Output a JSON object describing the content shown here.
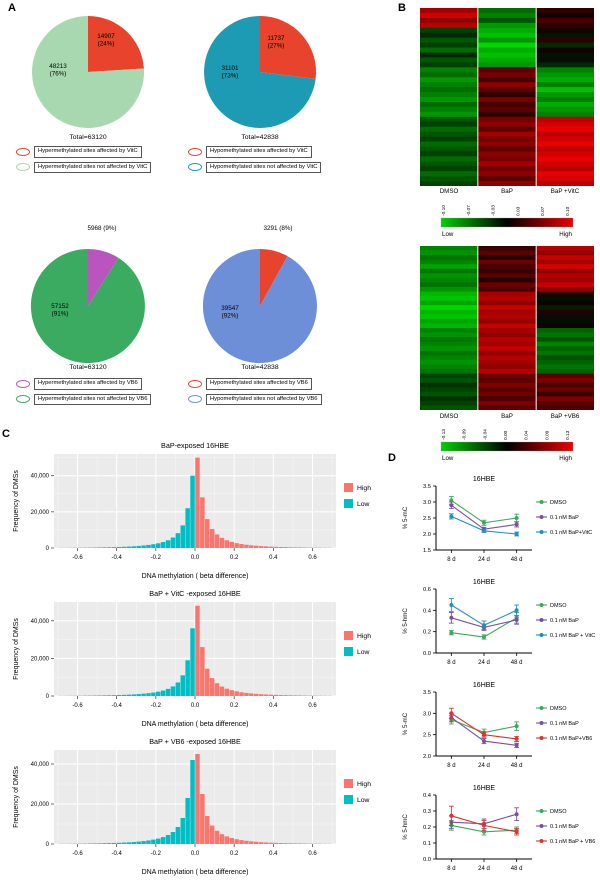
{
  "panel_labels": {
    "a": "A",
    "b": "B",
    "c": "C",
    "d": "D"
  },
  "colors": {
    "hist_high": "#F8766D",
    "hist_low": "#00BFC4",
    "axis": "#000000"
  },
  "pies": [
    {
      "total": "Total=63120",
      "slices": [
        {
          "pct": 24,
          "color": "#E8432D",
          "label_lines": [
            "14907",
            "(24%)"
          ],
          "label_offset": [
            18,
            -34
          ],
          "outside": false
        },
        {
          "pct": 76,
          "color": "#A8D8AF",
          "label_lines": [
            "48213",
            "(76%)"
          ],
          "label_offset": [
            -30,
            -4
          ],
          "outside": false
        }
      ],
      "legend": [
        {
          "color": "#E8432D",
          "text": "Hypermethylated sites affected by VitC"
        },
        {
          "color": "#A8D8AF",
          "text": "Hypermethylated sites not affected by VitC"
        }
      ]
    },
    {
      "total": "Total=42838",
      "slices": [
        {
          "pct": 27,
          "color": "#E8432D",
          "label_lines": [
            "11737",
            "(27%)"
          ],
          "label_offset": [
            16,
            -32
          ],
          "outside": false
        },
        {
          "pct": 73,
          "color": "#1E9BB4",
          "label_lines": [
            "31101",
            "(73%)"
          ],
          "label_offset": [
            -30,
            -2
          ],
          "outside": false
        }
      ],
      "legend": [
        {
          "color": "#E8432D",
          "text": "Hypomethylated sites affected by VitC"
        },
        {
          "color": "#1E9BB4",
          "text": "Hypomethylated sites not affected by VitC"
        }
      ]
    },
    {
      "total": "Total=63120",
      "slices": [
        {
          "pct": 9,
          "color": "#BA55C0",
          "label_lines": [
            "5968 (9%)"
          ],
          "label_offset": [
            14,
            10
          ],
          "outside": true
        },
        {
          "pct": 91,
          "color": "#3CAB62",
          "label_lines": [
            "57152",
            "(91%)"
          ],
          "label_offset": [
            -28,
            2
          ],
          "outside": false
        }
      ],
      "legend": [
        {
          "color": "#BA55C0",
          "text": "Hypermethylated sites affected by VB6"
        },
        {
          "color": "#3CAB62",
          "text": "Hypermethylated sites not affected by VB6"
        }
      ]
    },
    {
      "total": "Total=42838",
      "slices": [
        {
          "pct": 8,
          "color": "#E8432D",
          "label_lines": [
            "3291 (8%)"
          ],
          "label_offset": [
            18,
            10
          ],
          "outside": true
        },
        {
          "pct": 92,
          "color": "#6D8FD8",
          "label_lines": [
            "39547",
            "(92%)"
          ],
          "label_offset": [
            -30,
            4
          ],
          "outside": false
        }
      ],
      "legend": [
        {
          "color": "#E8432D",
          "text": "Hypomethylated sites affected by VB6"
        },
        {
          "color": "#6D8FD8",
          "text": "Hypomethylated sites not affected by VB6"
        }
      ]
    }
  ],
  "heatmaps": [
    {
      "columns": [
        "DMSO",
        "BaP",
        "BaP +VitC"
      ],
      "scale_ticks": [
        "-0.10",
        "-0.07",
        "-0.03",
        "0.03",
        "0.07",
        "0.10"
      ],
      "low_label": "Low",
      "high_label": "High",
      "max": 0.1,
      "rows": [
        [
          0.07,
          -0.05,
          0.02
        ],
        [
          0.09,
          -0.06,
          0.01
        ],
        [
          0.06,
          -0.04,
          0.03
        ],
        [
          0.08,
          -0.07,
          0.02
        ],
        [
          -0.03,
          -0.08,
          0.01
        ],
        [
          -0.02,
          -0.09,
          -0.01
        ],
        [
          -0.04,
          -0.07,
          0.02
        ],
        [
          -0.03,
          -0.1,
          -0.02
        ],
        [
          -0.05,
          -0.08,
          0.01
        ],
        [
          -0.02,
          -0.09,
          -0.01
        ],
        [
          -0.04,
          -0.08,
          0.0
        ],
        [
          -0.03,
          -0.07,
          -0.02
        ],
        [
          -0.06,
          0.04,
          -0.06
        ],
        [
          -0.05,
          0.05,
          -0.07
        ],
        [
          -0.07,
          0.03,
          -0.08
        ],
        [
          -0.06,
          0.06,
          -0.06
        ],
        [
          -0.05,
          0.04,
          -0.09
        ],
        [
          -0.06,
          0.02,
          -0.07
        ],
        [
          -0.07,
          0.05,
          -0.06
        ],
        [
          -0.05,
          0.03,
          -0.08
        ],
        [
          -0.06,
          0.04,
          -0.07
        ],
        [
          -0.07,
          0.02,
          -0.06
        ],
        [
          -0.04,
          0.05,
          0.08
        ],
        [
          -0.03,
          0.06,
          0.09
        ],
        [
          -0.05,
          0.04,
          0.1
        ],
        [
          -0.04,
          0.07,
          0.08
        ],
        [
          -0.03,
          0.05,
          0.09
        ],
        [
          -0.05,
          0.06,
          0.1
        ],
        [
          -0.04,
          0.04,
          0.08
        ],
        [
          -0.03,
          0.06,
          0.09
        ],
        [
          -0.05,
          0.05,
          0.1
        ],
        [
          -0.04,
          0.07,
          0.09
        ],
        [
          -0.03,
          0.05,
          0.08
        ],
        [
          -0.05,
          0.06,
          0.1
        ],
        [
          -0.04,
          0.04,
          0.09
        ],
        [
          -0.03,
          0.06,
          0.08
        ]
      ]
    },
    {
      "columns": [
        "DMSO",
        "BaP",
        "BaP +VB6"
      ],
      "scale_ticks": [
        "-0.13",
        "-0.09",
        "-0.04",
        "0.00",
        "0.04",
        "0.09",
        "0.13"
      ],
      "low_label": "Low",
      "high_label": "High",
      "max": 0.13,
      "rows": [
        [
          -0.08,
          0.03,
          0.1
        ],
        [
          -0.09,
          0.05,
          0.08
        ],
        [
          -0.07,
          0.02,
          0.11
        ],
        [
          -0.08,
          0.06,
          0.09
        ],
        [
          -0.1,
          0.04,
          0.12
        ],
        [
          -0.07,
          0.03,
          0.08
        ],
        [
          -0.09,
          0.05,
          0.1
        ],
        [
          -0.08,
          0.02,
          0.09
        ],
        [
          -0.07,
          0.06,
          0.11
        ],
        [
          -0.09,
          0.04,
          0.08
        ],
        [
          -0.11,
          0.09,
          0.02
        ],
        [
          -0.12,
          0.1,
          -0.01
        ],
        [
          -0.1,
          0.08,
          0.01
        ],
        [
          -0.13,
          0.11,
          -0.02
        ],
        [
          -0.11,
          0.09,
          0.02
        ],
        [
          -0.12,
          0.1,
          0.0
        ],
        [
          -0.1,
          0.08,
          -0.01
        ],
        [
          -0.11,
          0.11,
          0.01
        ],
        [
          -0.08,
          0.09,
          -0.06
        ],
        [
          -0.09,
          0.08,
          -0.07
        ],
        [
          -0.07,
          0.1,
          -0.05
        ],
        [
          -0.08,
          0.09,
          -0.08
        ],
        [
          -0.09,
          0.11,
          -0.06
        ],
        [
          -0.07,
          0.08,
          -0.07
        ],
        [
          -0.08,
          0.1,
          -0.05
        ],
        [
          -0.09,
          0.09,
          -0.06
        ],
        [
          -0.08,
          0.08,
          -0.07
        ],
        [
          -0.07,
          0.1,
          -0.06
        ],
        [
          -0.04,
          0.06,
          0.05
        ],
        [
          -0.05,
          0.05,
          0.07
        ],
        [
          -0.03,
          0.07,
          0.04
        ],
        [
          -0.04,
          0.05,
          0.06
        ],
        [
          -0.05,
          0.06,
          0.03
        ],
        [
          -0.03,
          0.04,
          0.07
        ],
        [
          -0.04,
          0.07,
          0.05
        ],
        [
          -0.05,
          0.05,
          0.04
        ]
      ]
    }
  ],
  "histograms": [
    {
      "title": "BaP-exposed 16HBE",
      "xlabel": "DNA methylation ( beta difference)",
      "ylabel": "Frequency of DMSs",
      "x_tick_values": [
        -0.6,
        -0.4,
        -0.2,
        0,
        0.2,
        0.4,
        0.6
      ],
      "x_tick_labels": [
        "-0.6",
        "-0.4",
        "-0.2",
        "0.0",
        "0.2",
        "0.4",
        "0.6"
      ],
      "y_tick_values": [
        0,
        20000,
        40000
      ],
      "y_tick_labels": [
        "0",
        "20,000",
        "40,000"
      ],
      "ymax": 52000,
      "bin_width": 0.025,
      "legend": [
        {
          "label": "High",
          "color": "#F8766D"
        },
        {
          "label": "Low",
          "color": "#00BFC4"
        }
      ],
      "high": [
        50000,
        28000,
        16000,
        10500,
        7500,
        5600,
        4300,
        3400,
        2700,
        2200,
        1800,
        1500,
        1250,
        1050,
        900,
        760,
        650,
        560,
        480,
        410,
        350,
        300,
        260,
        220,
        190,
        160,
        135,
        115
      ],
      "low": [
        40000,
        22000,
        12500,
        8200,
        5800,
        4300,
        3300,
        2600,
        2100,
        1700,
        1400,
        1150,
        950,
        800,
        670,
        570,
        480,
        410,
        350,
        300,
        250,
        215,
        185,
        160,
        135,
        115,
        95,
        80
      ]
    },
    {
      "title": "BaP + VitC -exposed 16HBE",
      "xlabel": "DNA methylation ( beta difference)",
      "ylabel": "Frequency of DMSs",
      "x_tick_values": [
        -0.6,
        -0.4,
        -0.2,
        0,
        0.2,
        0.4,
        0.6
      ],
      "x_tick_labels": [
        "-0.6",
        "-0.4",
        "-0.2",
        "0.0",
        "0.2",
        "0.4",
        "0.6"
      ],
      "y_tick_values": [
        0,
        20000,
        40000
      ],
      "y_tick_labels": [
        "0",
        "20,000",
        "40,000"
      ],
      "ymax": 50000,
      "bin_width": 0.025,
      "legend": [
        {
          "label": "High",
          "color": "#F8766D"
        },
        {
          "label": "Low",
          "color": "#00BFC4"
        }
      ],
      "high": [
        48000,
        26000,
        14500,
        9500,
        6800,
        5000,
        3900,
        3100,
        2500,
        2000,
        1650,
        1380,
        1150,
        960,
        820,
        700,
        600,
        510,
        440,
        380,
        320,
        275,
        235,
        200,
        170,
        145,
        120,
        100
      ],
      "low": [
        36000,
        19000,
        11000,
        7200,
        5100,
        3800,
        2900,
        2300,
        1850,
        1500,
        1250,
        1030,
        860,
        720,
        610,
        520,
        440,
        380,
        320,
        275,
        235,
        200,
        170,
        145,
        120,
        100,
        85,
        70
      ]
    },
    {
      "title": "BaP + VB6 -exposed 16HBE",
      "xlabel": "DNA methylation ( beta difference)",
      "ylabel": "Frequency of DMSs",
      "x_tick_values": [
        -0.6,
        -0.4,
        -0.2,
        0,
        0.2,
        0.4,
        0.6
      ],
      "x_tick_labels": [
        "-0.6",
        "-0.4",
        "-0.2",
        "0.0",
        "0.2",
        "0.4",
        "0.6"
      ],
      "y_tick_values": [
        0,
        20000,
        40000
      ],
      "y_tick_labels": [
        "0",
        "20,000",
        "40,000"
      ],
      "ymax": 47000,
      "bin_width": 0.025,
      "legend": [
        {
          "label": "High",
          "color": "#F8766D"
        },
        {
          "label": "Low",
          "color": "#00BFC4"
        }
      ],
      "high": [
        45000,
        25000,
        14000,
        9200,
        6600,
        4900,
        3800,
        3000,
        2400,
        1950,
        1600,
        1330,
        1110,
        930,
        790,
        670,
        570,
        490,
        420,
        360,
        310,
        265,
        225,
        190,
        160,
        135,
        115,
        95
      ],
      "low": [
        42000,
        23000,
        13000,
        8500,
        6000,
        4500,
        3450,
        2700,
        2200,
        1780,
        1460,
        1200,
        1000,
        840,
        710,
        600,
        510,
        440,
        375,
        320,
        275,
        235,
        200,
        170,
        145,
        120,
        100,
        85
      ]
    }
  ],
  "linecharts": [
    {
      "title": "16HBE",
      "ylabel": "% 5-mC",
      "x_labels": [
        "8 d",
        "24 d",
        "48 d"
      ],
      "ylim": [
        1.5,
        3.5
      ],
      "y_tick_values": [
        1.5,
        2.0,
        2.5,
        3.0,
        3.5
      ],
      "y_tick_labels": [
        "1.5",
        "2.0",
        "2.5",
        "3.0",
        "3.5"
      ],
      "series": [
        {
          "name": "DMSO",
          "color": "#3BAA5C",
          "values": [
            3.05,
            2.35,
            2.5
          ],
          "errors": [
            0.12,
            0.08,
            0.12
          ]
        },
        {
          "name": "0.1 nM BaP",
          "color": "#7B4FA0",
          "values": [
            2.9,
            2.15,
            2.3
          ],
          "errors": [
            0.1,
            0.06,
            0.08
          ]
        },
        {
          "name": "0.1 nM BaP+VitC",
          "color": "#1F8FBF",
          "values": [
            2.55,
            2.1,
            2.0
          ],
          "errors": [
            0.08,
            0.05,
            0.06
          ]
        }
      ]
    },
    {
      "title": "16HBE",
      "ylabel": "% 5-hmC",
      "x_labels": [
        "8 d",
        "24 d",
        "48 d"
      ],
      "ylim": [
        0.0,
        0.6
      ],
      "y_tick_values": [
        0.0,
        0.2,
        0.4,
        0.6
      ],
      "y_tick_labels": [
        "0.0",
        "0.2",
        "0.4",
        "0.6"
      ],
      "series": [
        {
          "name": "DMSO",
          "color": "#3BAA5C",
          "values": [
            0.19,
            0.15,
            0.33
          ],
          "errors": [
            0.02,
            0.02,
            0.05
          ]
        },
        {
          "name": "0.1 nM BaP",
          "color": "#7B4FA0",
          "values": [
            0.33,
            0.24,
            0.31
          ],
          "errors": [
            0.05,
            0.03,
            0.04
          ]
        },
        {
          "name": "0.1 nM BaP + VitC",
          "color": "#1F8FBF",
          "values": [
            0.45,
            0.26,
            0.4
          ],
          "errors": [
            0.06,
            0.04,
            0.05
          ]
        }
      ]
    },
    {
      "title": "16HBE",
      "ylabel": "% 5-mC",
      "x_labels": [
        "8 d",
        "24 d",
        "48 d"
      ],
      "ylim": [
        2.0,
        3.5
      ],
      "y_tick_values": [
        2.0,
        2.5,
        3.0,
        3.5
      ],
      "y_tick_labels": [
        "2.0",
        "2.5",
        "3.0",
        "3.5"
      ],
      "series": [
        {
          "name": "DMSO",
          "color": "#3BAA5C",
          "values": [
            2.85,
            2.55,
            2.7
          ],
          "errors": [
            0.1,
            0.08,
            0.1
          ]
        },
        {
          "name": "0.1 nM BaP",
          "color": "#7B4FA0",
          "values": [
            2.9,
            2.35,
            2.25
          ],
          "errors": [
            0.1,
            0.06,
            0.05
          ]
        },
        {
          "name": "0.1 nM BaP+VB6",
          "color": "#E0312A",
          "values": [
            3.0,
            2.5,
            2.4
          ],
          "errors": [
            0.12,
            0.06,
            0.06
          ]
        }
      ]
    },
    {
      "title": "16HBE",
      "ylabel": "% 5-hmC",
      "x_labels": [
        "8 d",
        "24 d",
        "48 d"
      ],
      "ylim": [
        0.0,
        0.4
      ],
      "y_tick_values": [
        0.0,
        0.1,
        0.2,
        0.3,
        0.4
      ],
      "y_tick_labels": [
        "0.0",
        "0.1",
        "0.2",
        "0.3",
        "0.4"
      ],
      "series": [
        {
          "name": "DMSO",
          "color": "#3BAA5C",
          "values": [
            0.21,
            0.17,
            0.18
          ],
          "errors": [
            0.03,
            0.02,
            0.02
          ]
        },
        {
          "name": "0.1 nM BaP",
          "color": "#7B4FA0",
          "values": [
            0.23,
            0.22,
            0.28
          ],
          "errors": [
            0.04,
            0.03,
            0.04
          ]
        },
        {
          "name": "0.1 nM BaP + VB6",
          "color": "#E0312A",
          "values": [
            0.27,
            0.21,
            0.17
          ],
          "errors": [
            0.06,
            0.03,
            0.02
          ]
        }
      ]
    }
  ],
  "chart_data": {
    "note": "composite figure; see pies, heatmaps, histograms, linecharts keys",
    "types": [
      "pie",
      "heatmap",
      "bar",
      "line"
    ]
  }
}
